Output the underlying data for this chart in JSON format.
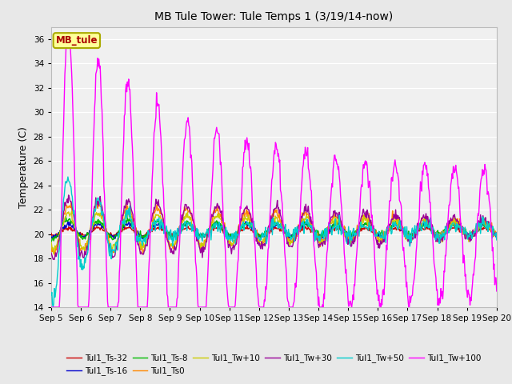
{
  "title": "MB Tule Tower: Tule Temps 1 (3/19/14-now)",
  "ylabel": "Temperature (C)",
  "ylim": [
    14,
    37
  ],
  "yticks": [
    14,
    16,
    18,
    20,
    22,
    24,
    26,
    28,
    30,
    32,
    34,
    36
  ],
  "n_days": 15,
  "xtick_labels": [
    "Sep 5",
    "Sep 6",
    "Sep 7",
    "Sep 8",
    "Sep 9",
    "Sep 10",
    "Sep 11",
    "Sep 12",
    "Sep 13",
    "Sep 14",
    "Sep 15",
    "Sep 16",
    "Sep 17",
    "Sep 18",
    "Sep 19",
    "Sep 20"
  ],
  "series_colors": {
    "Tul1_Ts-32": "#cc0000",
    "Tul1_Ts-16": "#0000cc",
    "Tul1_Ts-8": "#00bb00",
    "Tul1_Ts0": "#ff8800",
    "Tul1_Tw+10": "#cccc00",
    "Tul1_Tw+30": "#990099",
    "Tul1_Tw+50": "#00cccc",
    "Tul1_Tw+100": "#ff00ff"
  },
  "legend_box_color": "#ffff99",
  "legend_box_text": "MB_tule",
  "legend_box_text_color": "#aa0000",
  "legend_box_edge_color": "#aaaa00",
  "bg_color": "#e8e8e8",
  "plot_bg_color": "#f0f0f0",
  "grid_color": "#ffffff",
  "linewidth": 1.0,
  "figsize": [
    6.4,
    4.8
  ],
  "dpi": 100
}
